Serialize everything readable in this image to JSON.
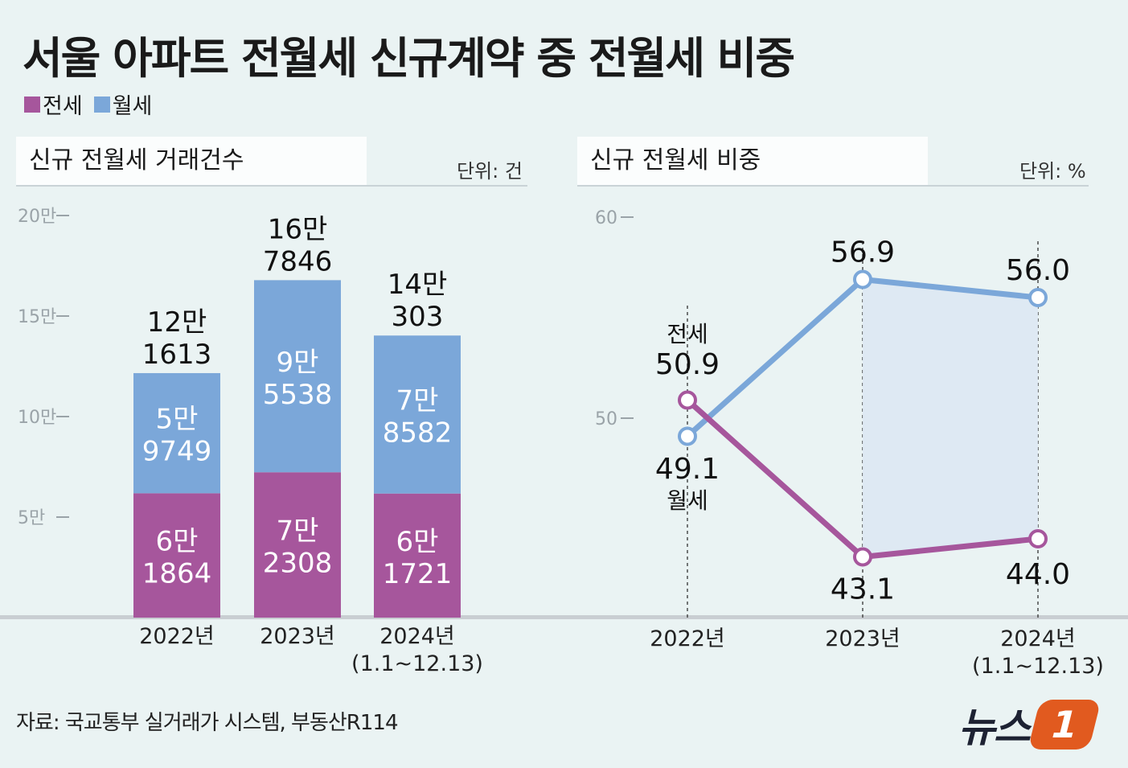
{
  "title": "서울 아파트 전월세 신규계약 중 전월세 비중",
  "legend": {
    "jeonse": "전세",
    "wolse": "월세"
  },
  "colors": {
    "jeonse": "#a6569c",
    "wolse": "#7ba7d9",
    "bg": "#eaf3f3",
    "fill_area": "#dde8f3"
  },
  "left_panel": {
    "title": "신규 전월세 거래건수",
    "unit": "단위: 건"
  },
  "right_panel": {
    "title": "신규 전월세 비중",
    "unit": "단위: %"
  },
  "source": "자료: 국교통부 실거래가 시스템, 부동산R114",
  "logo": {
    "text": "뉴스",
    "badge": "1"
  },
  "chart_data": [
    {
      "type": "bar",
      "stacked": true,
      "title": "신규 전월세 거래건수",
      "unit": "단위: 건",
      "categories": [
        "2022년",
        "2023년",
        "2024년"
      ],
      "category_notes": [
        "",
        "",
        "(1.1~12.13)"
      ],
      "yticks": [
        {
          "value": 50000,
          "label": "5만"
        },
        {
          "value": 100000,
          "label": "10만"
        },
        {
          "value": 150000,
          "label": "15만"
        },
        {
          "value": 200000,
          "label": "20만"
        }
      ],
      "ylim": [
        0,
        200000
      ],
      "series": [
        {
          "name": "전세",
          "values": [
            61864,
            72308,
            61721
          ],
          "labels": [
            [
              "6만",
              "1864"
            ],
            [
              "7만",
              "2308"
            ],
            [
              "6만",
              "1721"
            ]
          ]
        },
        {
          "name": "월세",
          "values": [
            59749,
            95538,
            78582
          ],
          "labels": [
            [
              "5만",
              "9749"
            ],
            [
              "9만",
              "5538"
            ],
            [
              "7만",
              "8582"
            ]
          ]
        }
      ],
      "totals": [
        121613,
        167846,
        140303
      ],
      "total_labels": [
        [
          "12만",
          "1613"
        ],
        [
          "16만",
          "7846"
        ],
        [
          "14만",
          "303"
        ]
      ]
    },
    {
      "type": "line",
      "title": "신규 전월세 비중",
      "unit": "단위: %",
      "categories": [
        "2022년",
        "2023년",
        "2024년"
      ],
      "category_notes": [
        "",
        "",
        "(1.1~12.13)"
      ],
      "yticks": [
        {
          "value": 50,
          "label": "50"
        },
        {
          "value": 60,
          "label": "60"
        }
      ],
      "series": [
        {
          "name": "전세",
          "values": [
            50.9,
            43.1,
            44.0
          ],
          "labels": [
            "50.9",
            "43.1",
            "44.0"
          ]
        },
        {
          "name": "월세",
          "values": [
            49.1,
            56.9,
            56.0
          ],
          "labels": [
            "49.1",
            "56.9",
            "56.0"
          ]
        }
      ]
    }
  ]
}
